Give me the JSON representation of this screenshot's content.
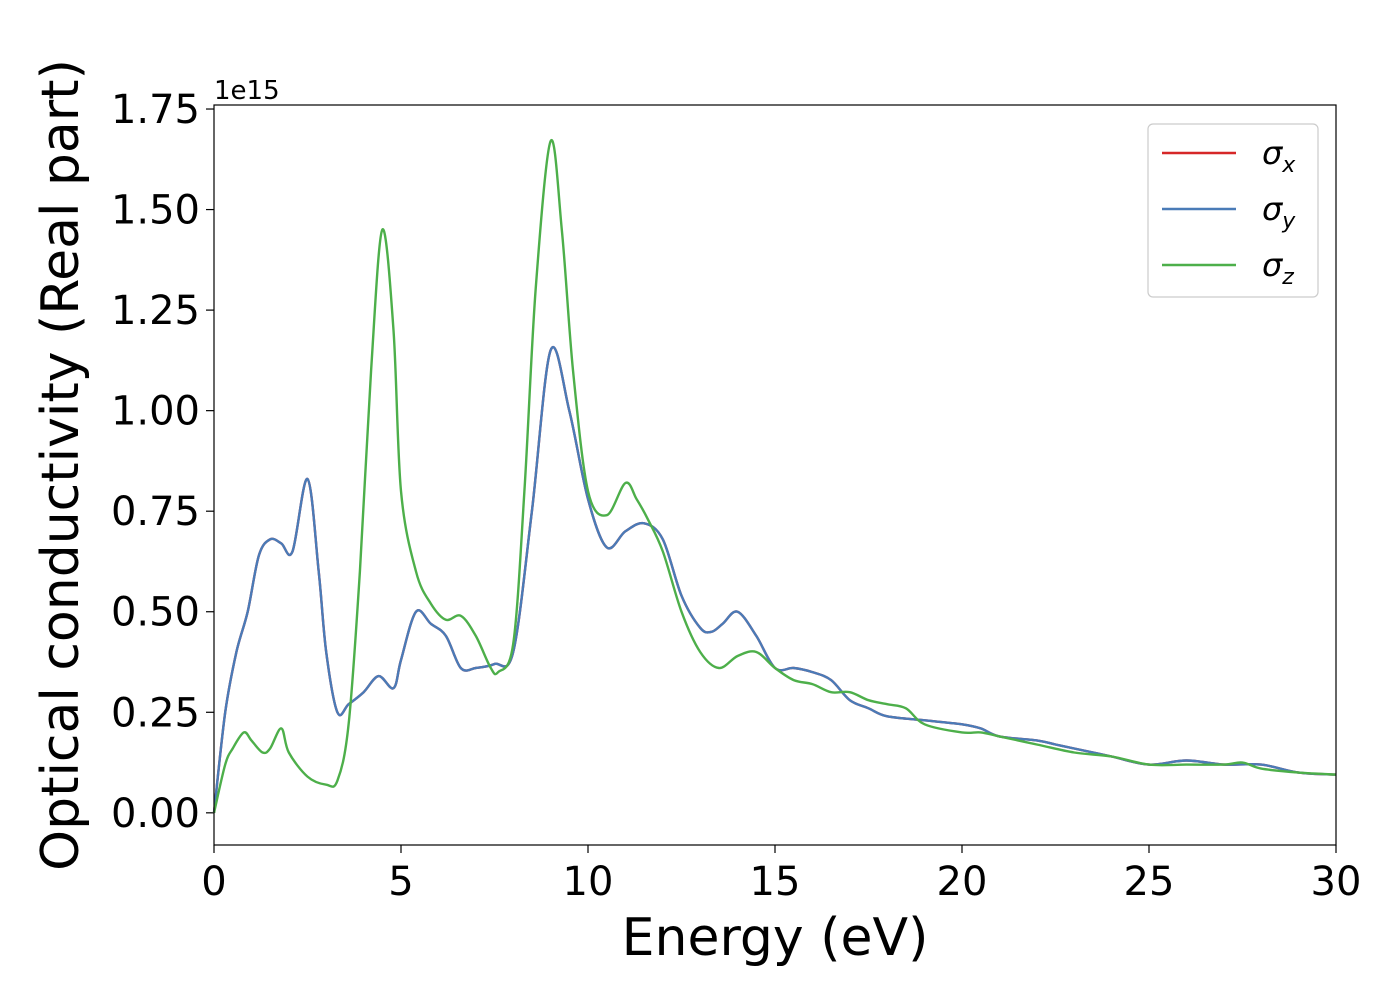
{
  "chart_data": {
    "type": "line",
    "xlabel": "Energy (eV)",
    "ylabel": "Optical conductivity (Real part)",
    "y_offset_label": "1e15",
    "y_multiplier": 1000000000000000.0,
    "xlim": [
      0,
      30
    ],
    "ylim": [
      -0.08,
      1.76
    ],
    "grid": false,
    "legend_position": "top-right",
    "x_ticks": [
      0,
      5,
      10,
      15,
      20,
      25,
      30
    ],
    "x_tick_labels": [
      "0",
      "5",
      "10",
      "15",
      "20",
      "25",
      "30"
    ],
    "y_ticks": [
      0.0,
      0.25,
      0.5,
      0.75,
      1.0,
      1.25,
      1.5,
      1.75
    ],
    "y_tick_labels": [
      "0.00",
      "0.25",
      "0.50",
      "0.75",
      "1.00",
      "1.25",
      "1.50",
      "1.75"
    ],
    "series": [
      {
        "name": "σx",
        "legend_base": "σ",
        "legend_sub": "x",
        "color": "#d62728",
        "x": [
          0,
          0.3,
          0.6,
          0.9,
          1.2,
          1.5,
          1.8,
          2.1,
          2.5,
          2.8,
          3.0,
          3.3,
          3.6,
          4.0,
          4.4,
          4.8,
          5.0,
          5.4,
          5.8,
          6.2,
          6.6,
          7.0,
          7.5,
          8.0,
          8.5,
          9.0,
          9.5,
          10.0,
          10.5,
          11.0,
          11.5,
          12.0,
          12.5,
          13.0,
          13.3,
          13.6,
          14.0,
          14.5,
          15.0,
          15.5,
          16.0,
          16.5,
          17.0,
          17.5,
          18.0,
          19.0,
          20.0,
          20.5,
          21.0,
          22.0,
          22.5,
          23.0,
          24.0,
          25.0,
          26.0,
          27.0,
          28.0,
          29.0,
          30.0
        ],
        "y": [
          0.0,
          0.25,
          0.4,
          0.5,
          0.64,
          0.68,
          0.67,
          0.65,
          0.83,
          0.6,
          0.4,
          0.25,
          0.27,
          0.3,
          0.34,
          0.31,
          0.38,
          0.5,
          0.47,
          0.44,
          0.36,
          0.36,
          0.37,
          0.4,
          0.75,
          1.15,
          1.0,
          0.78,
          0.66,
          0.7,
          0.72,
          0.68,
          0.54,
          0.46,
          0.45,
          0.47,
          0.5,
          0.44,
          0.36,
          0.36,
          0.35,
          0.33,
          0.28,
          0.26,
          0.24,
          0.23,
          0.22,
          0.21,
          0.19,
          0.18,
          0.17,
          0.16,
          0.14,
          0.12,
          0.13,
          0.12,
          0.12,
          0.1,
          0.095
        ]
      },
      {
        "name": "σy",
        "legend_base": "σ",
        "legend_sub": "y",
        "color": "#4a7bb7",
        "x": [
          0,
          0.3,
          0.6,
          0.9,
          1.2,
          1.5,
          1.8,
          2.1,
          2.5,
          2.8,
          3.0,
          3.3,
          3.6,
          4.0,
          4.4,
          4.8,
          5.0,
          5.4,
          5.8,
          6.2,
          6.6,
          7.0,
          7.5,
          8.0,
          8.5,
          9.0,
          9.5,
          10.0,
          10.5,
          11.0,
          11.5,
          12.0,
          12.5,
          13.0,
          13.3,
          13.6,
          14.0,
          14.5,
          15.0,
          15.5,
          16.0,
          16.5,
          17.0,
          17.5,
          18.0,
          19.0,
          20.0,
          20.5,
          21.0,
          22.0,
          22.5,
          23.0,
          24.0,
          25.0,
          26.0,
          27.0,
          28.0,
          29.0,
          30.0
        ],
        "y": [
          0.0,
          0.25,
          0.4,
          0.5,
          0.64,
          0.68,
          0.67,
          0.65,
          0.83,
          0.6,
          0.4,
          0.25,
          0.27,
          0.3,
          0.34,
          0.31,
          0.38,
          0.5,
          0.47,
          0.44,
          0.36,
          0.36,
          0.37,
          0.4,
          0.75,
          1.15,
          1.0,
          0.78,
          0.66,
          0.7,
          0.72,
          0.68,
          0.54,
          0.46,
          0.45,
          0.47,
          0.5,
          0.44,
          0.36,
          0.36,
          0.35,
          0.33,
          0.28,
          0.26,
          0.24,
          0.23,
          0.22,
          0.21,
          0.19,
          0.18,
          0.17,
          0.16,
          0.14,
          0.12,
          0.13,
          0.12,
          0.12,
          0.1,
          0.095
        ]
      },
      {
        "name": "σz",
        "legend_base": "σ",
        "legend_sub": "z",
        "color": "#4daf4a",
        "x": [
          0,
          0.3,
          0.5,
          0.8,
          1.0,
          1.3,
          1.5,
          1.8,
          2.0,
          2.5,
          3.0,
          3.3,
          3.6,
          3.9,
          4.2,
          4.5,
          4.8,
          5.0,
          5.4,
          5.8,
          6.2,
          6.6,
          7.0,
          7.4,
          7.6,
          8.0,
          8.3,
          8.6,
          9.0,
          9.3,
          9.6,
          10.0,
          10.5,
          11.0,
          11.3,
          11.6,
          12.0,
          12.5,
          13.0,
          13.5,
          14.0,
          14.5,
          15.0,
          15.5,
          16.0,
          16.5,
          17.0,
          17.5,
          18.0,
          18.5,
          19.0,
          20.0,
          20.5,
          21.0,
          22.0,
          23.0,
          24.0,
          25.0,
          26.0,
          27.0,
          27.5,
          28.0,
          29.0,
          30.0
        ],
        "y": [
          0.0,
          0.12,
          0.16,
          0.2,
          0.18,
          0.15,
          0.16,
          0.21,
          0.15,
          0.09,
          0.07,
          0.08,
          0.22,
          0.6,
          1.1,
          1.45,
          1.2,
          0.8,
          0.6,
          0.52,
          0.48,
          0.49,
          0.44,
          0.36,
          0.35,
          0.42,
          0.8,
          1.3,
          1.67,
          1.45,
          1.1,
          0.8,
          0.74,
          0.82,
          0.78,
          0.73,
          0.65,
          0.5,
          0.4,
          0.36,
          0.39,
          0.4,
          0.36,
          0.33,
          0.32,
          0.3,
          0.3,
          0.28,
          0.27,
          0.26,
          0.22,
          0.2,
          0.2,
          0.19,
          0.17,
          0.15,
          0.14,
          0.12,
          0.12,
          0.12,
          0.125,
          0.11,
          0.1,
          0.095
        ]
      }
    ]
  }
}
